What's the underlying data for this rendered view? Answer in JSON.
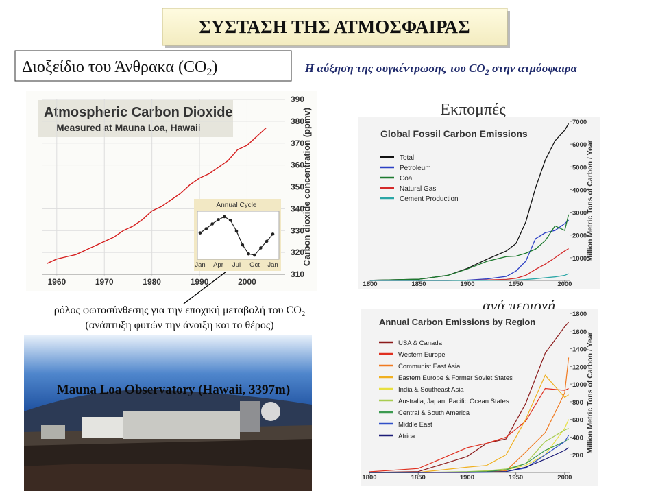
{
  "title": "ΣΥΣΤΑΣΗ ΤΗΣ ΑΤΜΟΣΦΑΙΡΑΣ",
  "left_heading": {
    "before": "Διοξείδιο του Άνθρακα (CO",
    "sub": "2",
    "after": ")"
  },
  "right_heading": {
    "before": "Η αύξηση της συγκέντρωσης του CO",
    "sub": "2",
    "after": " στην ατμόσφαιρα"
  },
  "emissions_label": "Εκπομπές",
  "region_label": "ανά περιοχή",
  "caption": {
    "line1": {
      "before": "ρόλος φωτοσύνθεσης για την εποχική μεταβολή του CO",
      "sub": "2"
    },
    "line2": "(ανάπτυξη φυτών την άνοιξη και το θέρος)"
  },
  "photo_caption": "Mauna Loa Observatory (Hawaii, 3397m)",
  "chart_data": [
    {
      "type": "line",
      "title": "Atmospheric Carbon Dioxide",
      "subtitle": "Measured at Mauna Loa, Hawaii",
      "y_label": "Carbon dioxide concentration (ppmv)",
      "x": [
        1958,
        1960,
        1962,
        1964,
        1966,
        1968,
        1970,
        1972,
        1974,
        1976,
        1978,
        1980,
        1982,
        1984,
        1986,
        1988,
        1990,
        1992,
        1994,
        1996,
        1998,
        2000,
        2002,
        2004
      ],
      "series": [
        {
          "color": "#d62020",
          "values": [
            315,
            317,
            318,
            319,
            321,
            323,
            325,
            327,
            330,
            332,
            335,
            339,
            341,
            344,
            347,
            351,
            354,
            356,
            359,
            362,
            367,
            369,
            373,
            377
          ]
        }
      ],
      "xlim": [
        1957,
        2008
      ],
      "xticks": [
        1960,
        1970,
        1980,
        1990,
        2000
      ],
      "ylim": [
        310,
        390
      ],
      "yticks": [
        310,
        320,
        330,
        340,
        350,
        360,
        370,
        380,
        390
      ],
      "grid": true,
      "inset": {
        "title": "Annual Cycle",
        "categories": [
          "Jan",
          null,
          null,
          "Apr",
          null,
          null,
          "Jul",
          null,
          null,
          "Oct",
          null,
          null,
          "Jan"
        ],
        "values": [
          0.5,
          1.2,
          2.0,
          2.7,
          3.2,
          2.6,
          0.8,
          -1.5,
          -3.0,
          -3.2,
          -2.0,
          -0.9,
          0.3
        ]
      }
    },
    {
      "type": "line",
      "title": "Global Fossil Carbon Emissions",
      "y_label": "Million Metric Tons of Carbon / Year",
      "x": [
        1800,
        1850,
        1880,
        1900,
        1920,
        1940,
        1950,
        1960,
        1970,
        1980,
        1990,
        2000,
        2004
      ],
      "series": [
        {
          "name": "Total",
          "color": "#111111",
          "values": [
            8,
            54,
            230,
            534,
            932,
            1299,
            1630,
            2577,
            4076,
            5297,
            6144,
            6611,
            6900
          ]
        },
        {
          "name": "Petroleum",
          "color": "#2b3fc4",
          "values": [
            0,
            0,
            2,
            16,
            70,
            180,
            420,
            850,
            1840,
            2100,
            2200,
            2500,
            2650
          ]
        },
        {
          "name": "Coal",
          "color": "#1d7a2e",
          "values": [
            8,
            54,
            228,
            507,
            840,
            1050,
            1070,
            1200,
            1380,
            1750,
            2400,
            2200,
            2900
          ]
        },
        {
          "name": "Natural Gas",
          "color": "#d42a2a",
          "values": [
            0,
            0,
            0,
            5,
            20,
            50,
            97,
            230,
            490,
            720,
            1000,
            1300,
            1400
          ]
        },
        {
          "name": "Cement Production",
          "color": "#2aa6a6",
          "values": [
            0,
            0,
            0,
            0,
            5,
            15,
            18,
            43,
            78,
            120,
            160,
            225,
            300
          ]
        }
      ],
      "xlim": [
        1800,
        2005
      ],
      "xticks": [
        1800,
        1850,
        1900,
        1950,
        2000
      ],
      "ylim": [
        0,
        7000
      ],
      "yticks": [
        1000,
        2000,
        3000,
        4000,
        5000,
        6000,
        7000
      ]
    },
    {
      "type": "line",
      "title": "Annual Carbon Emissions by Region",
      "y_label": "Million Metric Tons of Carbon / Year",
      "x": [
        1800,
        1850,
        1900,
        1920,
        1940,
        1960,
        1980,
        2000,
        2004
      ],
      "series": [
        {
          "name": "USA & Canada",
          "color": "#8b1a1a",
          "values": [
            0,
            10,
            180,
            330,
            380,
            780,
            1350,
            1650,
            1700
          ]
        },
        {
          "name": "Western Europe",
          "color": "#e03020",
          "values": [
            8,
            45,
            280,
            330,
            400,
            580,
            950,
            930,
            950
          ]
        },
        {
          "name": "Communist East Asia",
          "color": "#f07a20",
          "values": [
            0,
            0,
            0,
            5,
            20,
            230,
            450,
            900,
            1300
          ]
        },
        {
          "name": "Eastern Europe & Former Soviet States",
          "color": "#f0b020",
          "values": [
            0,
            1,
            60,
            80,
            200,
            600,
            1100,
            850,
            880
          ]
        },
        {
          "name": "India & Southeast Asia",
          "color": "#e8e040",
          "values": [
            0,
            0,
            5,
            15,
            30,
            80,
            200,
            500,
            600
          ]
        },
        {
          "name": "Australia, Japan, Pacific Ocean States",
          "color": "#a8cc50",
          "values": [
            0,
            0,
            10,
            20,
            40,
            100,
            350,
            480,
            500
          ]
        },
        {
          "name": "Central & South America",
          "color": "#3c9a50",
          "values": [
            0,
            0,
            5,
            10,
            30,
            100,
            250,
            350,
            380
          ]
        },
        {
          "name": "Middle East",
          "color": "#3050c8",
          "values": [
            0,
            0,
            0,
            2,
            10,
            50,
            200,
            350,
            420
          ]
        },
        {
          "name": "Africa",
          "color": "#1c1c78",
          "values": [
            0,
            0,
            1,
            5,
            10,
            60,
            150,
            250,
            280
          ]
        }
      ],
      "xlim": [
        1800,
        2005
      ],
      "xticks": [
        1800,
        1850,
        1900,
        1950,
        2000
      ],
      "ylim": [
        0,
        1800
      ],
      "yticks": [
        200,
        400,
        600,
        800,
        1000,
        1200,
        1400,
        1600,
        1800
      ]
    }
  ]
}
